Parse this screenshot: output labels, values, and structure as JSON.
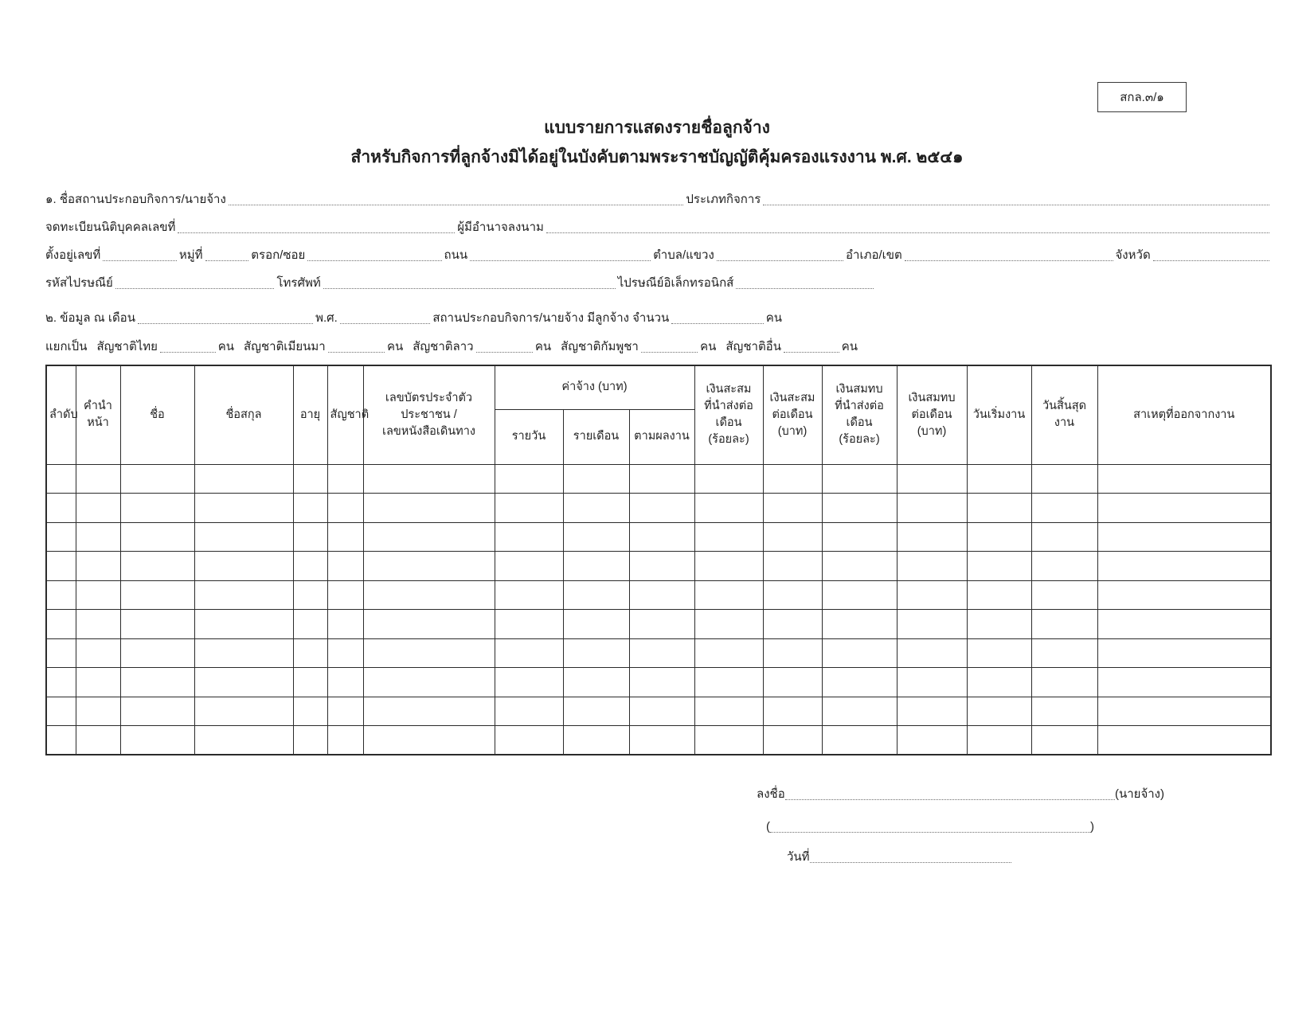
{
  "form_code": "สกล.๓/๑",
  "header": {
    "title": "แบบรายการแสดงรายชื่อลูกจ้าง",
    "subtitle": "สำหรับกิจการที่ลูกจ้างมิได้อยู่ในบังคับตามพระราชบัญญัติคุ้มครองแรงงาน พ.ศ. ๒๕๔๑"
  },
  "section1": {
    "employer_name_label": "๑. ชื่อสถานประกอบกิจการ/นายจ้าง",
    "business_type_label": "ประเภทกิจการ",
    "registration_no_label": "จดทะเบียนนิติบุคคลเลขที่",
    "authorized_signatory_label": "ผู้มีอำนาจลงนาม",
    "address_no_label": "ตั้งอยู่เลขที่",
    "moo_label": "หมู่ที่",
    "soi_label": "ตรอก/ซอย",
    "road_label": "ถนน",
    "subdistrict_label": "ตำบล/แขวง",
    "district_label": "อำเภอ/เขต",
    "province_label": "จังหวัด",
    "postcode_label": "รหัสไปรษณีย์",
    "phone_label": "โทรศัพท์",
    "email_label": "ไปรษณีย์อิเล็กทรอนิกส์"
  },
  "section2": {
    "data_month_label": "๒. ข้อมูล ณ เดือน",
    "year_label": "พ.ศ.",
    "employee_count_label": "สถานประกอบกิจการ/นายจ้าง มีลูกจ้าง จำนวน",
    "unit_persons": "คน",
    "breakdown_label": "แยกเป็น",
    "nationality_thai_label": "สัญชาติไทย",
    "nationality_myanmar_label": "สัญชาติเมียนมา",
    "nationality_lao_label": "สัญชาติลาว",
    "nationality_cambodian_label": "สัญชาติกัมพูชา",
    "nationality_other_label": "สัญชาติอื่น"
  },
  "table": {
    "headers": {
      "seq": "ลำดับ",
      "title_prefix": "คำนำหน้า",
      "first_name": "ชื่อ",
      "last_name": "ชื่อสกุล",
      "age": "อายุ",
      "nationality": "สัญชาติ",
      "id_number": "เลขบัตรประจำตัวประชาชน /\nเลขหนังสือเดินทาง",
      "wage_group": "ค่าจ้าง (บาท)",
      "wage_daily": "รายวัน",
      "wage_monthly": "รายเดือน",
      "wage_piecework": "ตามผลงาน",
      "savings_rate": "เงินสะสม\nที่นำส่งต่อเดือน\n(ร้อยละ)",
      "savings_amount": "เงินสะสม\nต่อเดือน\n(บาท)",
      "contribution_rate": "เงินสมทบ\nที่นำส่งต่อเดือน\n(ร้อยละ)",
      "contribution_amount": "เงินสมทบ\nต่อเดือน\n(บาท)",
      "start_date": "วันเริ่มงาน",
      "end_date": "วันสิ้นสุดงาน",
      "leaving_reason": "สาเหตุที่ออกจากงาน"
    },
    "body_rows": 10,
    "column_count": 17
  },
  "signature": {
    "sign_label": "ลงชื่อ",
    "employer_suffix": "(นายจ้าง)",
    "paren_open": "(",
    "paren_close": ")",
    "date_label": "วันที่"
  },
  "colors": {
    "ink": "#1f1f1f",
    "table_border": "#2b2b2b",
    "dotted_line": "#6e6e6e"
  }
}
